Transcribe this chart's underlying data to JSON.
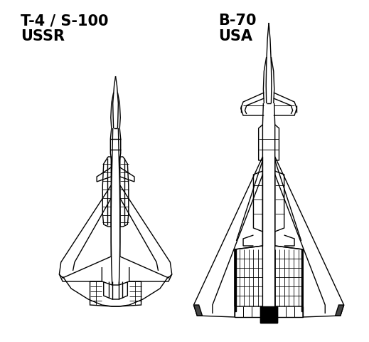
{
  "background_color": "#ffffff",
  "title_left": "T-4 / S-100\nUSSR",
  "title_right": "B-70\nUSA",
  "title_fontsize": 15,
  "title_fontweight": "bold",
  "line_color": "#000000",
  "line_width": 1.0,
  "fig_width": 5.19,
  "fig_height": 4.8,
  "dpi": 100
}
